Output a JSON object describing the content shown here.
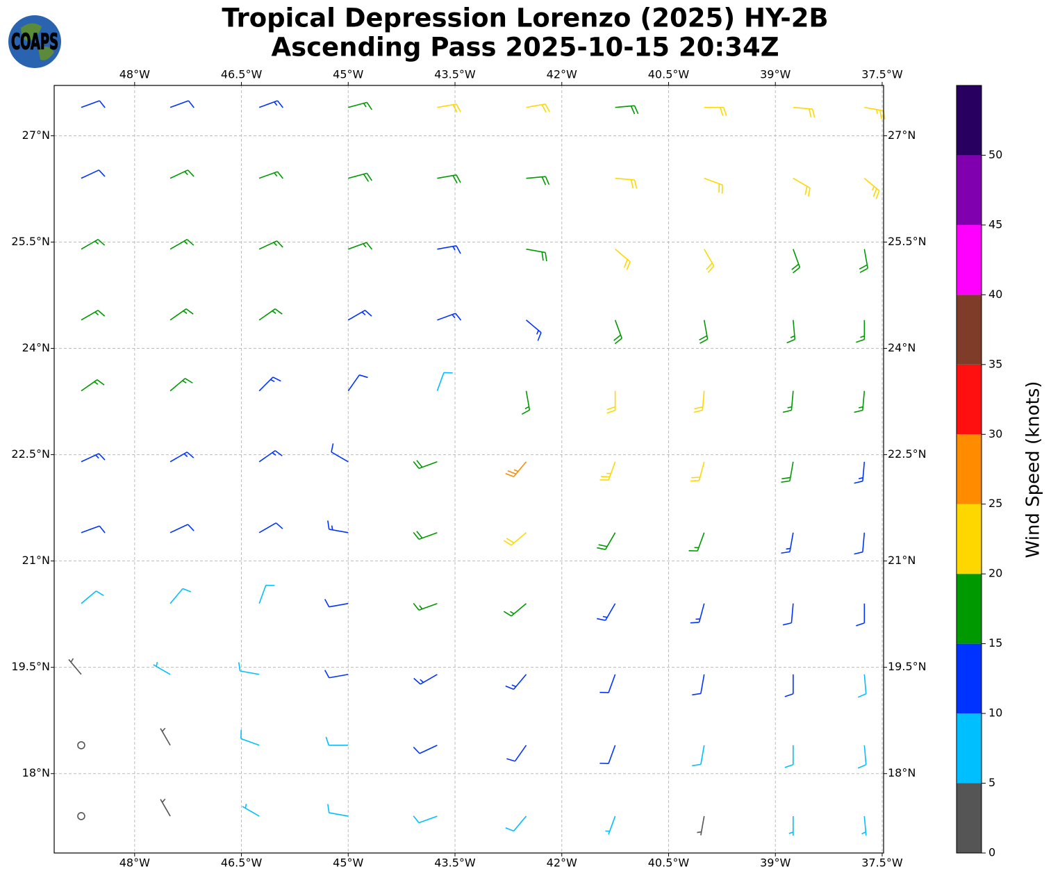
{
  "logo": "COAPS",
  "title": [
    "Tropical Depression Lorenzo (2025) HY-2B",
    "Ascending Pass 2025-10-15 20:34Z"
  ],
  "xlim": [
    -49.13,
    -37.48
  ],
  "ylim": [
    16.88,
    27.71
  ],
  "xticks": [
    {
      "value": -48,
      "label": "48°W"
    },
    {
      "value": -46.5,
      "label": "46.5°W"
    },
    {
      "value": -45,
      "label": "45°W"
    },
    {
      "value": -43.5,
      "label": "43.5°W"
    },
    {
      "value": -42,
      "label": "42°W"
    },
    {
      "value": -40.5,
      "label": "40.5°W"
    },
    {
      "value": -39,
      "label": "39°W"
    },
    {
      "value": -37.5,
      "label": "37.5°W"
    }
  ],
  "yticks": [
    {
      "value": 18,
      "label": "18°N"
    },
    {
      "value": 19.5,
      "label": "19.5°N"
    },
    {
      "value": 21,
      "label": "21°N"
    },
    {
      "value": 22.5,
      "label": "22.5°N"
    },
    {
      "value": 24,
      "label": "24°N"
    },
    {
      "value": 25.5,
      "label": "25.5°N"
    },
    {
      "value": 27,
      "label": "27°N"
    }
  ],
  "grid": true,
  "colorbar": {
    "label": "Wind Speed (knots)",
    "levels": [
      0,
      5,
      10,
      15,
      20,
      25,
      30,
      35,
      40,
      45,
      50,
      55
    ],
    "colors": [
      "#555555",
      "#00bfff",
      "#0033ff",
      "#009900",
      "#ffd700",
      "#ff8c00",
      "#ff1010",
      "#7f3c28",
      "#ff00ff",
      "#8000b0",
      "#280060"
    ],
    "ticks": [
      0,
      5,
      10,
      15,
      20,
      25,
      30,
      35,
      40,
      45,
      50
    ]
  },
  "winds": {
    "lons": [
      -48.75,
      -47.5,
      -46.25,
      -45,
      -43.75,
      -42.5,
      -41.25,
      -40,
      -38.75,
      -37.75
    ],
    "lats": [
      27.4,
      26.4,
      25.4,
      24.4,
      23.4,
      22.4,
      21.4,
      20.4,
      19.4,
      18.4,
      17.4
    ],
    "speed": [
      [
        12,
        12,
        14,
        17,
        21,
        20,
        19,
        21,
        22,
        24
      ],
      [
        12,
        16,
        17,
        18,
        19,
        19,
        21,
        22,
        22,
        24
      ],
      [
        16,
        17,
        17,
        16,
        14,
        18,
        21,
        20,
        19,
        19
      ],
      [
        16,
        17,
        15,
        13,
        13,
        14,
        18,
        18,
        17,
        16
      ],
      [
        16,
        15,
        13,
        12,
        9,
        16,
        22,
        22,
        17,
        16
      ],
      [
        13,
        14,
        13,
        12,
        18,
        26,
        23,
        22,
        18,
        13
      ],
      [
        12,
        12,
        12,
        13,
        18,
        22,
        18,
        17,
        14,
        12
      ],
      [
        8,
        8,
        9,
        12,
        15,
        17,
        14,
        13,
        12,
        11
      ],
      [
        3,
        6,
        8,
        11,
        13,
        13,
        12,
        12,
        12,
        9
      ],
      [
        2,
        3,
        8,
        9,
        11,
        11,
        10,
        9,
        8,
        8
      ],
      [
        2,
        3,
        7,
        8,
        9,
        8,
        7,
        4,
        6,
        7
      ]
    ],
    "dir": [
      [
        70,
        70,
        70,
        75,
        80,
        80,
        85,
        90,
        95,
        100
      ],
      [
        65,
        65,
        70,
        75,
        80,
        85,
        95,
        110,
        120,
        130
      ],
      [
        60,
        60,
        65,
        70,
        80,
        100,
        130,
        150,
        160,
        170
      ],
      [
        60,
        55,
        55,
        60,
        70,
        130,
        160,
        170,
        175,
        180
      ],
      [
        55,
        50,
        45,
        35,
        20,
        170,
        180,
        185,
        185,
        185
      ],
      [
        65,
        60,
        55,
        300,
        250,
        220,
        200,
        195,
        190,
        185
      ],
      [
        70,
        65,
        60,
        280,
        250,
        230,
        210,
        200,
        190,
        185
      ],
      [
        50,
        40,
        20,
        260,
        250,
        230,
        210,
        195,
        185,
        180
      ],
      [
        320,
        300,
        280,
        260,
        240,
        220,
        200,
        190,
        180,
        175
      ],
      [
        320,
        330,
        290,
        270,
        245,
        215,
        200,
        190,
        180,
        175
      ],
      [
        330,
        330,
        300,
        280,
        250,
        220,
        200,
        190,
        180,
        175
      ]
    ]
  }
}
